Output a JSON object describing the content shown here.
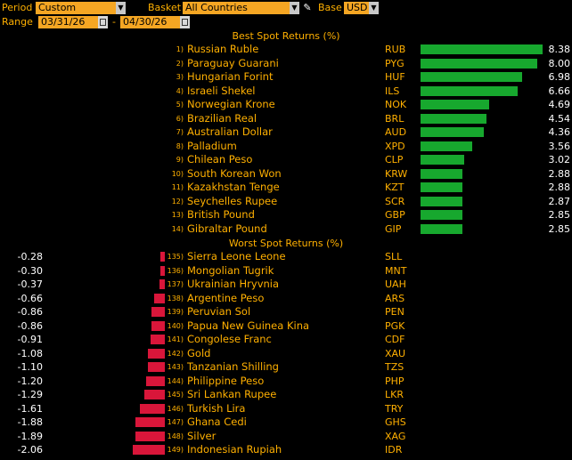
{
  "toolbar": {
    "period_label": "Period",
    "period_value": "Custom",
    "basket_label": "Basket",
    "basket_value": "All Countries",
    "base_label": "Base",
    "base_value": "USD",
    "range_label": "Range",
    "range_start": "03/31/26",
    "range_separator": "-",
    "range_end": "04/30/26"
  },
  "best": {
    "title": "Best Spot Returns (%)",
    "rows": [
      {
        "rank": "1)",
        "name": "Russian Ruble",
        "code": "RUB",
        "value": "8.38"
      },
      {
        "rank": "2)",
        "name": "Paraguay Guarani",
        "code": "PYG",
        "value": "8.00"
      },
      {
        "rank": "3)",
        "name": "Hungarian Forint",
        "code": "HUF",
        "value": "6.98"
      },
      {
        "rank": "4)",
        "name": "Israeli Shekel",
        "code": "ILS",
        "value": "6.66"
      },
      {
        "rank": "5)",
        "name": "Norwegian Krone",
        "code": "NOK",
        "value": "4.69"
      },
      {
        "rank": "6)",
        "name": "Brazilian Real",
        "code": "BRL",
        "value": "4.54"
      },
      {
        "rank": "7)",
        "name": "Australian Dollar",
        "code": "AUD",
        "value": "4.36"
      },
      {
        "rank": "8)",
        "name": "Palladium",
        "code": "XPD",
        "value": "3.56"
      },
      {
        "rank": "9)",
        "name": "Chilean Peso",
        "code": "CLP",
        "value": "3.02"
      },
      {
        "rank": "10)",
        "name": "South Korean Won",
        "code": "KRW",
        "value": "2.88"
      },
      {
        "rank": "11)",
        "name": "Kazakhstan Tenge",
        "code": "KZT",
        "value": "2.88"
      },
      {
        "rank": "12)",
        "name": "Seychelles Rupee",
        "code": "SCR",
        "value": "2.87"
      },
      {
        "rank": "13)",
        "name": "British Pound",
        "code": "GBP",
        "value": "2.85"
      },
      {
        "rank": "14)",
        "name": "Gibraltar Pound",
        "code": "GIP",
        "value": "2.85"
      }
    ]
  },
  "worst": {
    "title": "Worst Spot Returns (%)",
    "rows": [
      {
        "rank": "135)",
        "name": "Sierra Leone Leone",
        "code": "SLL",
        "value": "-0.28"
      },
      {
        "rank": "136)",
        "name": "Mongolian Tugrik",
        "code": "MNT",
        "value": "-0.30"
      },
      {
        "rank": "137)",
        "name": "Ukrainian Hryvnia",
        "code": "UAH",
        "value": "-0.37"
      },
      {
        "rank": "138)",
        "name": "Argentine Peso",
        "code": "ARS",
        "value": "-0.66"
      },
      {
        "rank": "139)",
        "name": "Peruvian Sol",
        "code": "PEN",
        "value": "-0.86"
      },
      {
        "rank": "140)",
        "name": "Papua New Guinea Kina",
        "code": "PGK",
        "value": "-0.86"
      },
      {
        "rank": "141)",
        "name": "Congolese Franc",
        "code": "CDF",
        "value": "-0.91"
      },
      {
        "rank": "142)",
        "name": "Gold",
        "code": "XAU",
        "value": "-1.08"
      },
      {
        "rank": "143)",
        "name": "Tanzanian Shilling",
        "code": "TZS",
        "value": "-1.10"
      },
      {
        "rank": "144)",
        "name": "Philippine Peso",
        "code": "PHP",
        "value": "-1.20"
      },
      {
        "rank": "145)",
        "name": "Sri Lankan Rupee",
        "code": "LKR",
        "value": "-1.29"
      },
      {
        "rank": "146)",
        "name": "Turkish Lira",
        "code": "TRY",
        "value": "-1.61"
      },
      {
        "rank": "147)",
        "name": "Ghana Cedi",
        "code": "GHS",
        "value": "-1.88"
      },
      {
        "rank": "148)",
        "name": "Silver",
        "code": "XAG",
        "value": "-1.89"
      },
      {
        "rank": "149)",
        "name": "Indonesian Rupiah",
        "code": "IDR",
        "value": "-2.06"
      }
    ]
  },
  "colors": {
    "background": "#000000",
    "label": "#ffb000",
    "input_field": "#f5a623",
    "positive_bar": "#17a82e",
    "negative_bar": "#d9163a",
    "value_text": "#ffffff"
  },
  "icons": {
    "dropdown": "chevron-down-icon",
    "calendar": "calendar-icon",
    "edit": "pencil-icon"
  }
}
